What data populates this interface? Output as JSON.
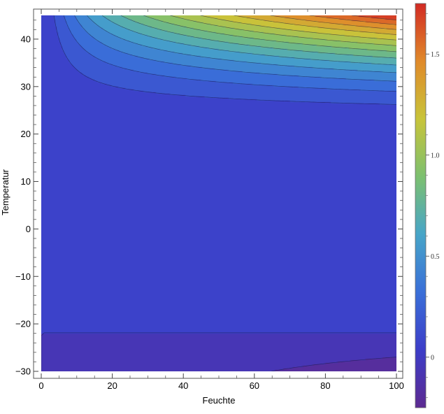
{
  "chart_data": {
    "type": "contour",
    "title": "",
    "xlabel": "Feuchte",
    "ylabel": "Temperatur",
    "xlim": [
      0,
      100
    ],
    "ylim": [
      -30,
      45
    ],
    "x_ticks": [
      0,
      20,
      40,
      60,
      80,
      100
    ],
    "y_ticks": [
      -30,
      -20,
      -10,
      0,
      10,
      20,
      30,
      40
    ],
    "x_tick_labels": [
      "0",
      "20",
      "40",
      "60",
      "80",
      "100"
    ],
    "y_tick_labels": [
      "−30",
      "−20",
      "−10",
      "0",
      "10",
      "20",
      "30",
      "40"
    ],
    "colorbar": {
      "range": [
        -0.25,
        1.75
      ],
      "ticks": [
        0,
        0.5,
        1.0,
        1.5
      ],
      "tick_labels": [
        "0",
        "0.5",
        "1.0",
        "1.5"
      ],
      "colormap": "Rainbow",
      "colors": [
        "#5d2a91",
        "#3c3dc8",
        "#3a6fd8",
        "#47a5c8",
        "#7cc070",
        "#c8c43a",
        "#e08a2a",
        "#d22a24"
      ]
    },
    "contour_levels": [
      -0.125,
      0,
      0.125,
      0.25,
      0.375,
      0.5,
      0.625,
      0.75,
      0.875,
      1.0,
      1.125,
      1.25,
      1.375,
      1.5,
      1.625
    ],
    "grid": false,
    "legend": "colorbar right"
  }
}
